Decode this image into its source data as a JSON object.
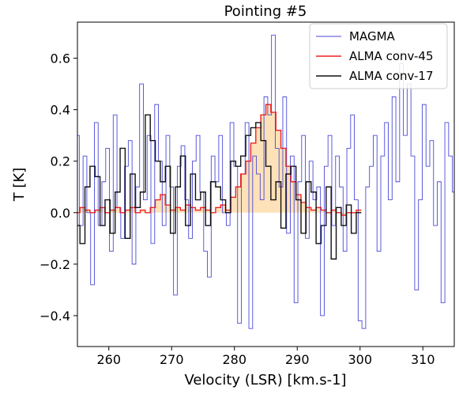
{
  "chart_data": {
    "type": "line",
    "title": "Pointing #5",
    "xlabel": "Velocity (LSR) [km.s-1]",
    "ylabel": "T [K]",
    "xlim": [
      255,
      315
    ],
    "ylim": [
      -0.52,
      0.74
    ],
    "xticks": [
      260,
      270,
      280,
      290,
      300,
      310
    ],
    "yticks": [
      -0.4,
      -0.2,
      0.0,
      0.2,
      0.4,
      0.6
    ],
    "xtick_labels": [
      "260",
      "270",
      "280",
      "290",
      "300",
      "310"
    ],
    "ytick_labels": [
      "−0.4",
      "−0.2",
      "0.0",
      "0.2",
      "0.4",
      "0.6"
    ],
    "legend_position": "upper right",
    "grid": false,
    "series": [
      {
        "name": "MAGMA",
        "color": "#4a4ad9",
        "step": "mid",
        "x": [
          255.0,
          255.6,
          256.2,
          256.8,
          257.4,
          258.0,
          258.6,
          259.2,
          259.8,
          260.4,
          261.0,
          261.6,
          262.2,
          262.8,
          263.4,
          264.0,
          264.6,
          265.2,
          265.8,
          266.4,
          267.0,
          267.6,
          268.2,
          268.8,
          269.4,
          270.0,
          270.6,
          271.2,
          271.8,
          272.4,
          273.0,
          273.6,
          274.2,
          274.8,
          275.4,
          276.0,
          276.6,
          277.2,
          277.8,
          278.4,
          279.0,
          279.6,
          280.2,
          280.8,
          281.4,
          282.0,
          282.6,
          283.2,
          283.8,
          284.4,
          285.0,
          285.6,
          286.2,
          286.8,
          287.4,
          288.0,
          288.6,
          289.2,
          289.8,
          290.4,
          291.0,
          291.6,
          292.2,
          292.8,
          293.4,
          294.0,
          294.6,
          295.2,
          295.8,
          296.4,
          297.0,
          297.6,
          298.2,
          298.8,
          299.4,
          300.0,
          300.6,
          301.2,
          301.8,
          302.4,
          303.0,
          303.6,
          304.2,
          304.8,
          305.4,
          306.0,
          306.6,
          307.2,
          307.8,
          308.4,
          309.0,
          309.6,
          310.2,
          310.8,
          311.4,
          312.0,
          312.6,
          313.2,
          313.8,
          314.4,
          315.0
        ],
        "y": [
          0.3,
          -0.05,
          0.22,
          0.0,
          -0.28,
          0.35,
          -0.05,
          0.12,
          0.25,
          -0.15,
          0.38,
          0.02,
          -0.1,
          0.18,
          0.28,
          -0.2,
          0.1,
          0.5,
          0.05,
          0.3,
          -0.12,
          0.42,
          0.2,
          -0.05,
          0.3,
          0.1,
          -0.32,
          0.18,
          0.26,
          0.05,
          -0.1,
          0.2,
          0.3,
          0.08,
          -0.15,
          -0.25,
          0.22,
          0.12,
          0.3,
          0.0,
          -0.05,
          0.35,
          0.18,
          -0.43,
          0.15,
          0.35,
          -0.45,
          0.22,
          0.15,
          0.05,
          0.45,
          0.38,
          0.69,
          0.25,
          0.1,
          0.45,
          -0.08,
          0.22,
          -0.35,
          0.12,
          0.3,
          -0.1,
          0.2,
          0.05,
          0.1,
          -0.4,
          0.18,
          0.3,
          -0.05,
          0.22,
          0.1,
          -0.15,
          0.25,
          0.38,
          0.05,
          -0.42,
          -0.45,
          0.1,
          0.18,
          0.3,
          -0.15,
          0.22,
          0.35,
          0.05,
          0.45,
          0.12,
          0.58,
          0.3,
          0.5,
          0.22,
          -0.3,
          0.05,
          0.42,
          0.18,
          0.28,
          -0.05,
          0.12,
          -0.35,
          0.35,
          0.22,
          0.08
        ]
      },
      {
        "name": "ALMA conv-45",
        "color": "#ee2222",
        "fill": "#fde1b8",
        "step": "mid",
        "x": [
          255.0,
          255.8,
          256.6,
          257.4,
          258.2,
          259.0,
          259.8,
          260.6,
          261.4,
          262.2,
          263.0,
          263.8,
          264.6,
          265.4,
          266.2,
          267.0,
          267.8,
          268.6,
          269.4,
          270.2,
          271.0,
          271.8,
          272.6,
          273.4,
          274.2,
          275.0,
          275.8,
          276.6,
          277.4,
          278.2,
          279.0,
          279.8,
          280.6,
          281.4,
          282.2,
          283.0,
          283.8,
          284.6,
          285.4,
          286.2,
          287.0,
          287.8,
          288.6,
          289.4,
          290.2,
          291.0,
          291.8,
          292.6,
          293.4,
          294.2,
          295.0,
          295.8,
          296.6,
          297.4,
          298.2,
          299.0,
          299.8
        ],
        "y": [
          0.0,
          0.02,
          0.01,
          0.0,
          0.01,
          0.02,
          0.0,
          0.01,
          0.02,
          0.0,
          0.01,
          0.02,
          0.0,
          0.01,
          0.0,
          0.02,
          0.05,
          0.07,
          0.03,
          0.01,
          0.02,
          0.01,
          0.03,
          0.02,
          0.01,
          0.02,
          0.01,
          0.0,
          0.02,
          0.03,
          0.01,
          0.06,
          0.1,
          0.15,
          0.2,
          0.27,
          0.33,
          0.38,
          0.42,
          0.39,
          0.32,
          0.25,
          0.18,
          0.12,
          0.07,
          0.04,
          0.02,
          0.01,
          0.02,
          0.01,
          0.0,
          0.01,
          0.0,
          -0.01,
          0.0,
          0.0,
          0.01
        ]
      },
      {
        "name": "ALMA conv-17",
        "color": "#111111",
        "step": "mid",
        "x": [
          255.0,
          255.8,
          256.6,
          257.4,
          258.2,
          259.0,
          259.8,
          260.6,
          261.4,
          262.2,
          263.0,
          263.8,
          264.6,
          265.4,
          266.2,
          267.0,
          267.8,
          268.6,
          269.4,
          270.2,
          271.0,
          271.8,
          272.6,
          273.4,
          274.2,
          275.0,
          275.8,
          276.6,
          277.4,
          278.2,
          279.0,
          279.8,
          280.6,
          281.4,
          282.2,
          283.0,
          283.8,
          284.6,
          285.4,
          286.2,
          287.0,
          287.8,
          288.6,
          289.4,
          290.2,
          291.0,
          291.8,
          292.6,
          293.4,
          294.2,
          295.0,
          295.8,
          296.6,
          297.4,
          298.2,
          299.0,
          299.8
        ],
        "y": [
          -0.05,
          -0.12,
          0.1,
          0.18,
          0.14,
          -0.05,
          0.05,
          -0.08,
          0.08,
          0.25,
          -0.1,
          0.15,
          0.02,
          0.08,
          0.38,
          0.28,
          0.2,
          0.12,
          0.18,
          -0.08,
          0.1,
          0.22,
          -0.05,
          0.15,
          0.05,
          0.08,
          -0.05,
          0.12,
          0.1,
          0.05,
          0.0,
          0.2,
          0.18,
          0.22,
          0.3,
          0.33,
          0.35,
          0.28,
          0.18,
          0.05,
          0.12,
          -0.06,
          0.15,
          0.18,
          0.05,
          -0.08,
          0.12,
          0.08,
          -0.12,
          -0.05,
          0.1,
          -0.18,
          0.02,
          -0.05,
          0.03,
          -0.08,
          0.0
        ]
      }
    ]
  }
}
